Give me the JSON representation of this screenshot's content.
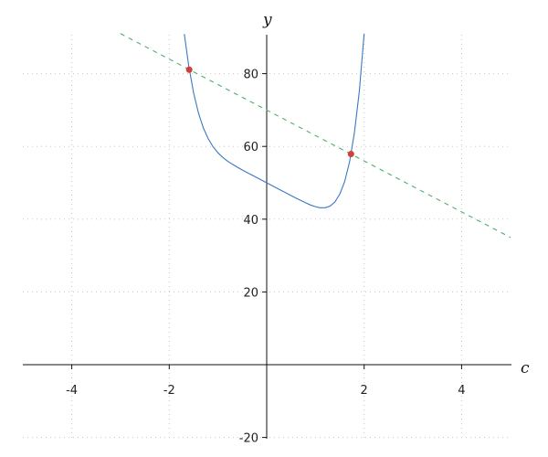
{
  "chart_data": {
    "type": "line",
    "xlabel": "c",
    "ylabel": "y",
    "xlim": [
      -5,
      5
    ],
    "ylim": [
      -20,
      91
    ],
    "grid": true,
    "x_ticks": [
      -4,
      -2,
      2,
      4
    ],
    "y_ticks": [
      80,
      60,
      40,
      20,
      -20
    ],
    "x_tick_labels": [
      "-4",
      "-2",
      "2",
      "4"
    ],
    "y_tick_labels": [
      "80",
      "60",
      "40",
      "20",
      "-20"
    ],
    "colors": {
      "curve": "#3a78c2",
      "line": "#4caf6a",
      "points": "#d0413a",
      "grid": "#c8c8c8"
    },
    "series": [
      {
        "style": "solid",
        "x": [
          -1.69,
          -1.6,
          -1.5,
          -1.4,
          -1.3,
          -1.2,
          -1.1,
          -1.0,
          -0.9,
          -0.8,
          -0.7,
          -0.6,
          -0.5,
          -0.4,
          -0.2,
          0,
          0.2,
          0.4,
          0.6,
          0.8,
          0.9,
          1.0,
          1.1,
          1.2,
          1.3,
          1.4,
          1.5,
          1.6,
          1.7,
          1.8,
          1.9,
          2.0
        ],
        "y": [
          90.9,
          82.2,
          74.7,
          69.2,
          65.1,
          62.1,
          59.9,
          58.25,
          56.96,
          55.93,
          55.05,
          54.26,
          53.52,
          52.8,
          51.4,
          50,
          48.6,
          47.2,
          45.81,
          44.49,
          43.9,
          43.43,
          43.14,
          43.14,
          43.59,
          44.74,
          46.85,
          50.34,
          55.7,
          63.7,
          75.1,
          91.0
        ]
      },
      {
        "style": "dashed",
        "x": [
          -3,
          5
        ],
        "y": [
          91,
          35
        ]
      }
    ],
    "points": [
      {
        "x": -1.59,
        "y": 81.1
      },
      {
        "x": 1.73,
        "y": 57.9
      }
    ]
  }
}
